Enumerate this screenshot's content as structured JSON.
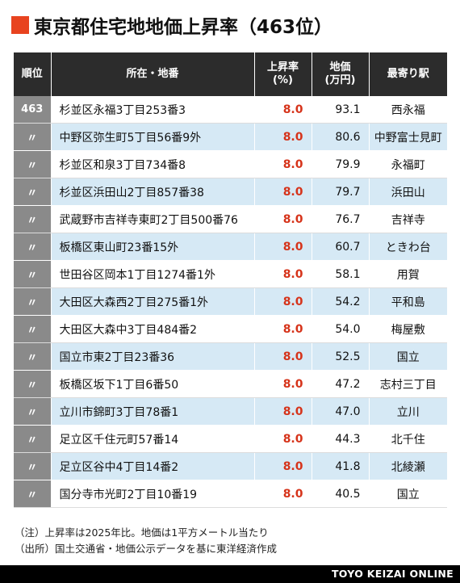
{
  "title": "東京都住宅地地価上昇率（463位）",
  "accent_color": "#e8431f",
  "rate_color": "#d6331a",
  "headers": {
    "rank": "順位",
    "address": "所在・地番",
    "rate_line1": "上昇率",
    "rate_line2": "(%)",
    "price_line1": "地価",
    "price_line2": "(万円)",
    "station": "最寄り駅"
  },
  "rows": [
    {
      "rank": "463",
      "address": "杉並区永福3丁目253番3",
      "rate": "8.0",
      "price": "93.1",
      "station": "西永福"
    },
    {
      "rank": "〃",
      "address": "中野区弥生町5丁目56番9外",
      "rate": "8.0",
      "price": "80.6",
      "station": "中野富士見町"
    },
    {
      "rank": "〃",
      "address": "杉並区和泉3丁目734番8",
      "rate": "8.0",
      "price": "79.9",
      "station": "永福町"
    },
    {
      "rank": "〃",
      "address": "杉並区浜田山2丁目857番38",
      "rate": "8.0",
      "price": "79.7",
      "station": "浜田山"
    },
    {
      "rank": "〃",
      "address": "武蔵野市吉祥寺東町2丁目500番76",
      "rate": "8.0",
      "price": "76.7",
      "station": "吉祥寺"
    },
    {
      "rank": "〃",
      "address": "板橋区東山町23番15外",
      "rate": "8.0",
      "price": "60.7",
      "station": "ときわ台"
    },
    {
      "rank": "〃",
      "address": "世田谷区岡本1丁目1274番1外",
      "rate": "8.0",
      "price": "58.1",
      "station": "用賀"
    },
    {
      "rank": "〃",
      "address": "大田区大森西2丁目275番1外",
      "rate": "8.0",
      "price": "54.2",
      "station": "平和島"
    },
    {
      "rank": "〃",
      "address": "大田区大森中3丁目484番2",
      "rate": "8.0",
      "price": "54.0",
      "station": "梅屋敷"
    },
    {
      "rank": "〃",
      "address": "国立市東2丁目23番36",
      "rate": "8.0",
      "price": "52.5",
      "station": "国立"
    },
    {
      "rank": "〃",
      "address": "板橋区坂下1丁目6番50",
      "rate": "8.0",
      "price": "47.2",
      "station": "志村三丁目"
    },
    {
      "rank": "〃",
      "address": "立川市錦町3丁目78番1",
      "rate": "8.0",
      "price": "47.0",
      "station": "立川"
    },
    {
      "rank": "〃",
      "address": "足立区千住元町57番14",
      "rate": "8.0",
      "price": "44.3",
      "station": "北千住"
    },
    {
      "rank": "〃",
      "address": "足立区谷中4丁目14番2",
      "rate": "8.0",
      "price": "41.8",
      "station": "北綾瀬"
    },
    {
      "rank": "〃",
      "address": "国分寺市光町2丁目10番19",
      "rate": "8.0",
      "price": "40.5",
      "station": "国立"
    }
  ],
  "notes": [
    "（注）上昇率は2025年比。地価は1平方メートル当たり",
    "（出所）国土交通省・地価公示データを基に東洋経済作成"
  ],
  "brand": "TOYO KEIZAI ONLINE"
}
